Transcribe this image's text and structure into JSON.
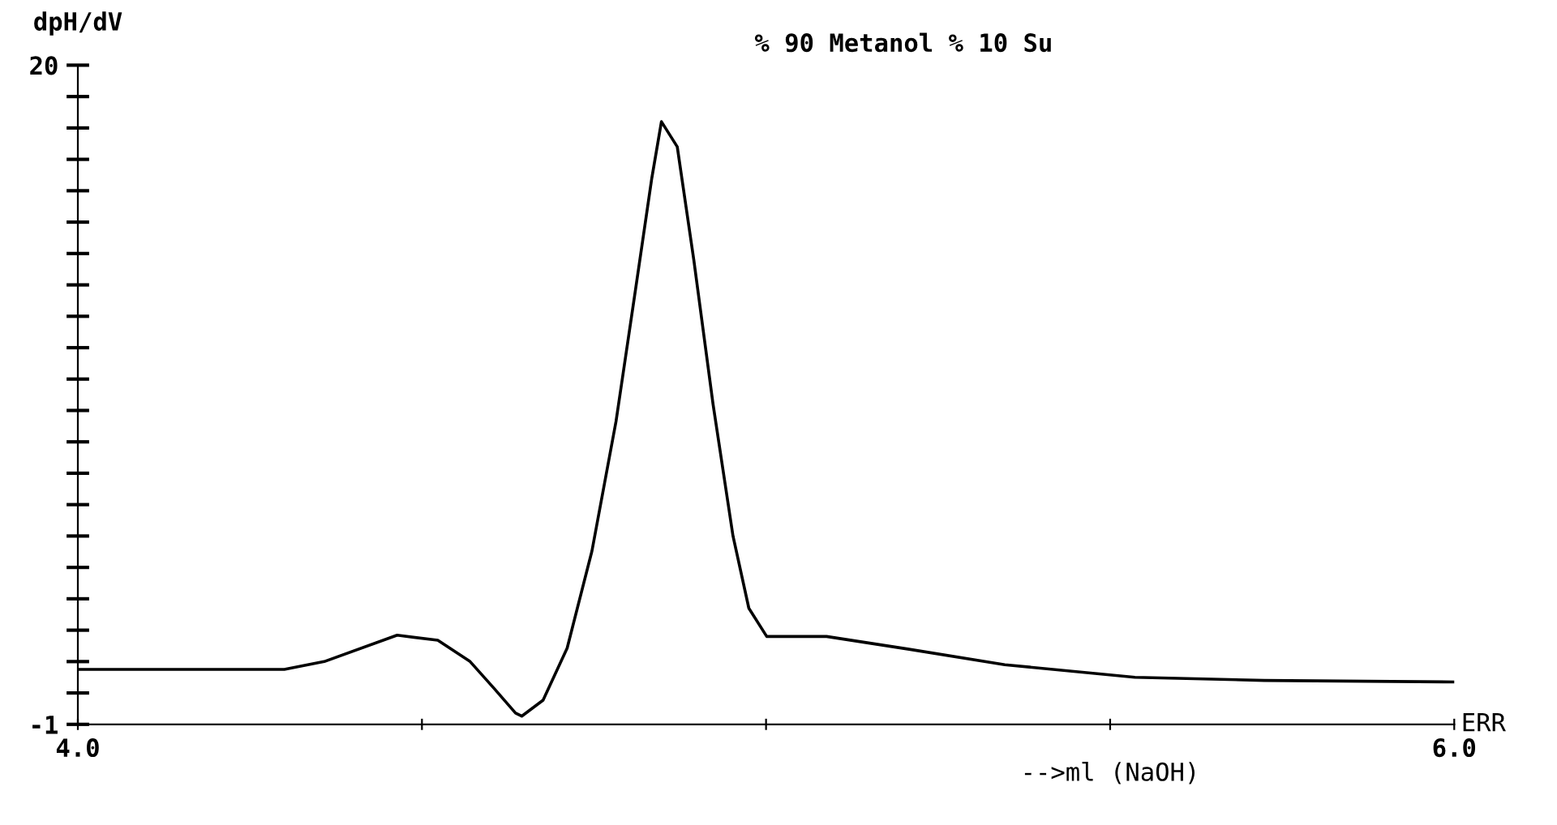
{
  "chart_data": {
    "type": "line",
    "title": "% 90 Metanol % 10 Su",
    "xlabel": "-->ml (NaOH)",
    "ylabel": "dpH/dV",
    "annotations": [
      "ERR"
    ],
    "x": [
      4.0,
      4.3,
      4.358,
      4.464,
      4.523,
      4.57,
      4.605,
      4.636,
      4.645,
      4.676,
      4.711,
      4.747,
      4.782,
      4.81,
      4.834,
      4.848,
      4.871,
      4.895,
      4.923,
      4.952,
      4.975,
      5.001,
      5.088,
      5.206,
      5.347,
      5.536,
      5.724,
      6.0
    ],
    "series": [
      {
        "color": "#000000",
        "values": [
          0.75,
          0.75,
          1.0,
          1.84,
          1.68,
          1.0,
          0.14,
          -0.64,
          -0.74,
          -0.23,
          1.43,
          4.52,
          8.65,
          12.8,
          16.4,
          18.2,
          17.4,
          13.8,
          9.2,
          5.0,
          2.7,
          1.8,
          1.8,
          1.4,
          0.9,
          0.5,
          0.4,
          0.35
        ]
      }
    ],
    "xlim": [
      4.0,
      6.0
    ],
    "ylim": [
      -1,
      20
    ],
    "xticks": [
      {
        "value": 4.0,
        "label": "4.0"
      },
      {
        "value": 4.5,
        "label": null
      },
      {
        "value": 5.0,
        "label": null
      },
      {
        "value": 5.5,
        "label": null
      },
      {
        "value": 6.0,
        "label": "6.0"
      }
    ],
    "yticks": [
      -1,
      {
        "value": 0,
        "label": null
      },
      {
        "value": 1,
        "label": null
      },
      {
        "value": 2,
        "label": null
      },
      {
        "value": 3,
        "label": null
      },
      {
        "value": 4,
        "label": null
      },
      {
        "value": 5,
        "label": null
      },
      {
        "value": 6,
        "label": null
      },
      {
        "value": 7,
        "label": null
      },
      {
        "value": 8,
        "label": null
      },
      {
        "value": 9,
        "label": null
      },
      {
        "value": 10,
        "label": null
      },
      {
        "value": 11,
        "label": null
      },
      {
        "value": 12,
        "label": null
      },
      {
        "value": 13,
        "label": null
      },
      {
        "value": 14,
        "label": null
      },
      {
        "value": 15,
        "label": null
      },
      {
        "value": 16,
        "label": null
      },
      {
        "value": 17,
        "label": null
      },
      {
        "value": 18,
        "label": null
      },
      {
        "value": 19,
        "label": null
      },
      20
    ],
    "grid": false,
    "legend": false,
    "marker": "none",
    "line_style": "solid"
  }
}
